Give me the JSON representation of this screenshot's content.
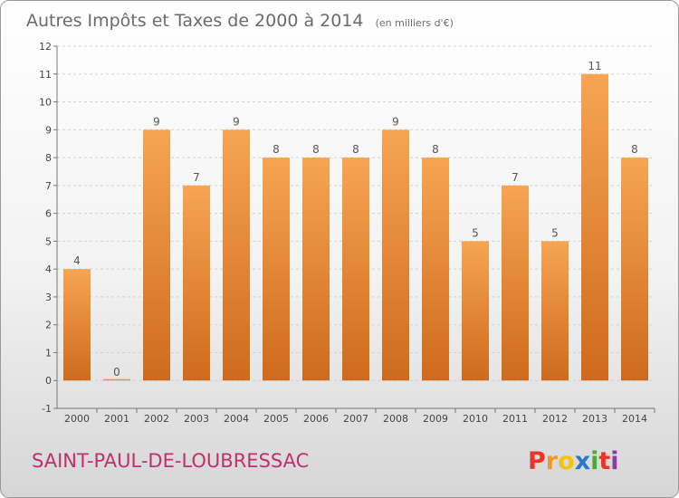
{
  "chart_data": {
    "type": "bar",
    "title": "Autres Impôts et Taxes de 2000 à 2014",
    "subtitle": "(en milliers d'€)",
    "xlabel": "",
    "ylabel": "",
    "categories": [
      "2000",
      "2001",
      "2002",
      "2003",
      "2004",
      "2005",
      "2006",
      "2007",
      "2008",
      "2009",
      "2010",
      "2011",
      "2012",
      "2013",
      "2014"
    ],
    "values": [
      4,
      0,
      9,
      7,
      9,
      8,
      8,
      8,
      9,
      8,
      5,
      7,
      5,
      11,
      8
    ],
    "ylim": [
      -1,
      12
    ],
    "yticks": [
      -1,
      0,
      1,
      2,
      3,
      4,
      5,
      6,
      7,
      8,
      9,
      10,
      11,
      12
    ],
    "grid": true,
    "bar_color": "#f0923a"
  },
  "footer": {
    "commune": "SAINT-PAUL-DE-LOUBRESSAC",
    "logo": [
      "P",
      "r",
      "o",
      "x",
      "i",
      "t",
      "i"
    ]
  },
  "logo_colors": [
    "#e8352a",
    "#f39a1e",
    "#f2c40c",
    "#2a78c8",
    "#4aab3c",
    "#e8352a",
    "#8a3fa0"
  ]
}
